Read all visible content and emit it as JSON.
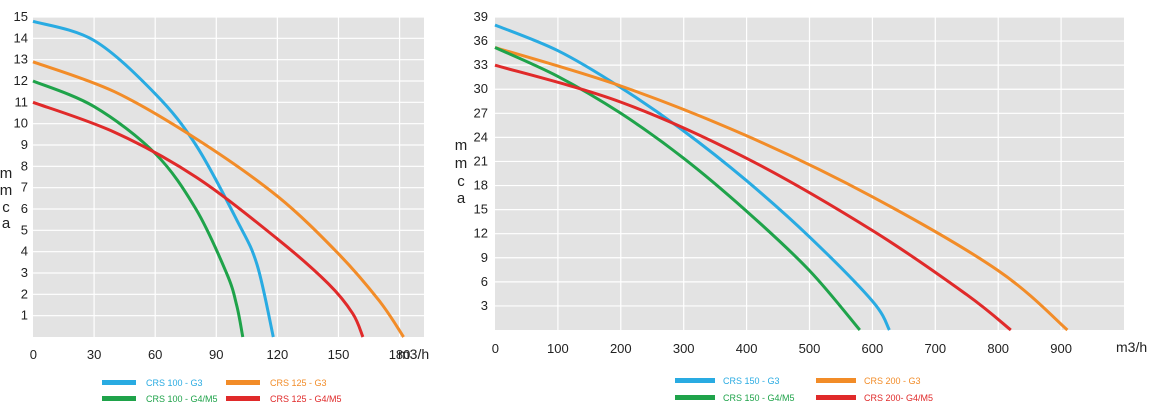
{
  "chart_data": [
    {
      "type": "line",
      "id": "left",
      "title": "",
      "xlabel": "m3/h",
      "ylabel": [
        "m",
        "m",
        "c",
        "a"
      ],
      "xlim": [
        0,
        192
      ],
      "ylim": [
        0,
        15
      ],
      "x_ticks": [
        "0",
        "30",
        "60",
        "90",
        "120",
        "150",
        "180"
      ],
      "x_tick_values": [
        0,
        30,
        60,
        90,
        120,
        150,
        180
      ],
      "y_ticks": [
        "1",
        "2",
        "3",
        "4",
        "5",
        "6",
        "7",
        "8",
        "9",
        "10",
        "11",
        "12",
        "13",
        "14",
        "15"
      ],
      "y_tick_values": [
        1,
        2,
        3,
        4,
        5,
        6,
        7,
        8,
        9,
        10,
        11,
        12,
        13,
        14,
        15
      ],
      "series": [
        {
          "name": "CRS 100 - G3",
          "color": "#29abe2",
          "values": [
            [
              0,
              14.8
            ],
            [
              30,
              13.9
            ],
            [
              60,
              11.4
            ],
            [
              80,
              9.0
            ],
            [
              100,
              5.5
            ],
            [
              110,
              3.4
            ],
            [
              118,
              0.0
            ]
          ]
        },
        {
          "name": "CRS 125 - G3",
          "color": "#f28c28",
          "values": [
            [
              0,
              12.9
            ],
            [
              40,
              11.5
            ],
            [
              80,
              9.3
            ],
            [
              120,
              6.6
            ],
            [
              150,
              3.9
            ],
            [
              170,
              1.7
            ],
            [
              182,
              0.0
            ]
          ]
        },
        {
          "name": "CRS 100 - G4/M5",
          "color": "#1fa34a",
          "values": [
            [
              0,
              12.0
            ],
            [
              30,
              10.8
            ],
            [
              60,
              8.6
            ],
            [
              80,
              6.0
            ],
            [
              95,
              3.0
            ],
            [
              100,
              1.5
            ],
            [
              103,
              0.0
            ]
          ]
        },
        {
          "name": "CRS 125 - G4/M5",
          "color": "#e02a2a",
          "values": [
            [
              0,
              11.0
            ],
            [
              40,
              9.6
            ],
            [
              80,
              7.5
            ],
            [
              120,
              4.6
            ],
            [
              145,
              2.5
            ],
            [
              157,
              1.1
            ],
            [
              162,
              0.0
            ]
          ]
        }
      ]
    },
    {
      "type": "line",
      "id": "right",
      "title": "",
      "xlabel": "m3/h",
      "ylabel": [
        "m",
        "m",
        "c",
        "a"
      ],
      "xlim": [
        0,
        1000
      ],
      "ylim": [
        0,
        39
      ],
      "x_ticks": [
        "0",
        "100",
        "200",
        "300",
        "400",
        "500",
        "600",
        "700",
        "800",
        "900"
      ],
      "x_tick_values": [
        0,
        100,
        200,
        300,
        400,
        500,
        600,
        700,
        800,
        900
      ],
      "y_ticks": [
        "3",
        "6",
        "9",
        "12",
        "15",
        "18",
        "21",
        "24",
        "27",
        "30",
        "33",
        "36",
        "39"
      ],
      "y_tick_values": [
        3,
        6,
        9,
        12,
        15,
        18,
        21,
        24,
        27,
        30,
        33,
        36,
        39
      ],
      "series": [
        {
          "name": "CRS 150 - G3",
          "color": "#29abe2",
          "values": [
            [
              0,
              38.0
            ],
            [
              100,
              34.8
            ],
            [
              200,
              30.2
            ],
            [
              300,
              24.8
            ],
            [
              400,
              18.6
            ],
            [
              500,
              11.6
            ],
            [
              600,
              3.6
            ],
            [
              627,
              0.0
            ]
          ]
        },
        {
          "name": "CRS 200 - G3",
          "color": "#f28c28",
          "values": [
            [
              0,
              35.2
            ],
            [
              200,
              30.4
            ],
            [
              400,
              24.2
            ],
            [
              600,
              16.6
            ],
            [
              800,
              7.4
            ],
            [
              910,
              0.0
            ]
          ]
        },
        {
          "name": "CRS 150 - G4/M5",
          "color": "#1fa34a",
          "values": [
            [
              0,
              35.2
            ],
            [
              100,
              31.6
            ],
            [
              200,
              27.0
            ],
            [
              300,
              21.4
            ],
            [
              400,
              14.8
            ],
            [
              500,
              7.4
            ],
            [
              580,
              0.0
            ]
          ]
        },
        {
          "name": "CRS 200- G4/M5",
          "color": "#e02a2a",
          "values": [
            [
              0,
              33.0
            ],
            [
              200,
              28.4
            ],
            [
              400,
              21.4
            ],
            [
              600,
              12.4
            ],
            [
              750,
              4.4
            ],
            [
              820,
              0.0
            ]
          ]
        }
      ]
    }
  ]
}
